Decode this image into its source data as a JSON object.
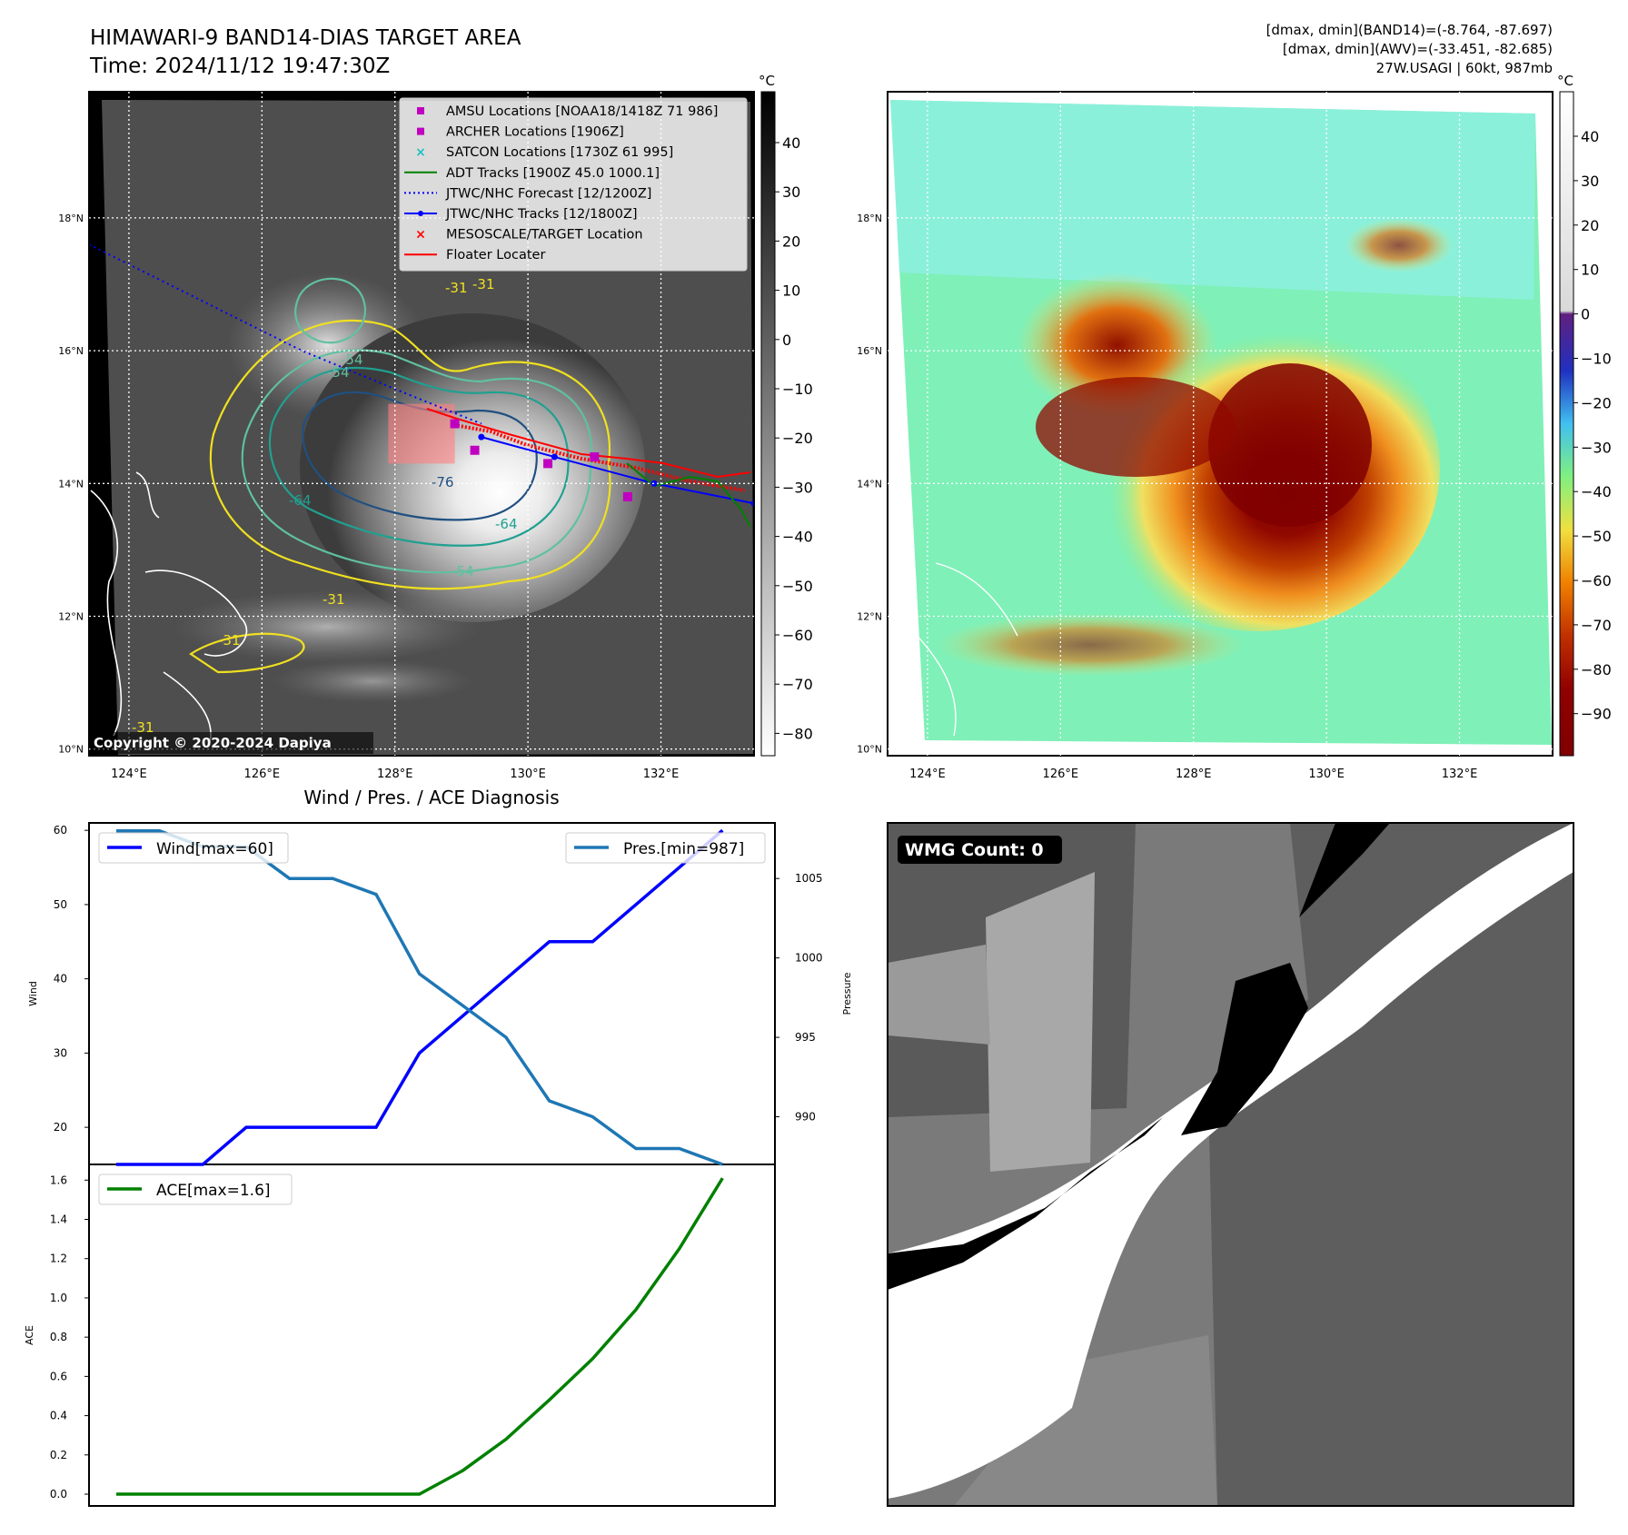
{
  "header": {
    "title_line1": "HIMAWARI-9 BAND14-DIAS TARGET AREA",
    "title_line2": "Time: 2024/11/12 19:47:30Z",
    "stats_line1": "[dmax, dmin](BAND14)=(-8.764, -87.697)",
    "stats_line2": "[dmax, dmin](AWV)=(-33.451, -82.685)",
    "stats_line3": "27W.USAGI | 60kt, 987mb"
  },
  "map": {
    "lat_labels": [
      "18°N",
      "16°N",
      "14°N",
      "12°N",
      "10°N"
    ],
    "lon_labels": [
      "124°E",
      "126°E",
      "128°E",
      "130°E",
      "132°E"
    ],
    "contour_labels": [
      "-31",
      "-54",
      "-64",
      "-76",
      "-64",
      "-54",
      "-31",
      "-31",
      "-31",
      "-31",
      "-54"
    ],
    "copyright": "Copyright © 2020-2024 Dapiya",
    "track_jtwc": [
      [
        129.3,
        14.7
      ],
      [
        130.4,
        14.4
      ],
      [
        131.9,
        14.0
      ],
      [
        133.4,
        13.7
      ]
    ],
    "track_forecast": [
      [
        123.4,
        17.6
      ],
      [
        125.0,
        16.8
      ],
      [
        126.6,
        16.0
      ],
      [
        128.3,
        15.3
      ],
      [
        129.3,
        14.9
      ]
    ],
    "amsu_points": [
      [
        128.9,
        14.9
      ],
      [
        129.2,
        14.5
      ],
      [
        130.3,
        14.3
      ],
      [
        131.0,
        14.4
      ],
      [
        131.5,
        13.8
      ]
    ],
    "floater_box": {
      "lon_min": 127.9,
      "lon_max": 128.9,
      "lat_min": 14.3,
      "lat_max": 15.2
    }
  },
  "legend": {
    "items": [
      {
        "label": "AMSU Locations [NOAA18/1418Z 71 986]",
        "color": "#c000c0",
        "marker": "square"
      },
      {
        "label": "ARCHER Locations [1906Z]",
        "color": "#c000c0",
        "marker": "square"
      },
      {
        "label": "SATCON Locations [1730Z 61 995]",
        "color": "#20c0c0",
        "marker": "x"
      },
      {
        "label": "ADT Tracks [1900Z 45.0 1000.1]",
        "color": "#008000",
        "marker": "line"
      },
      {
        "label": "JTWC/NHC Forecast [12/1200Z]",
        "color": "#0000ff",
        "marker": "dotted"
      },
      {
        "label": "JTWC/NHC Tracks [12/1800Z]",
        "color": "#0000ff",
        "marker": "dotline"
      },
      {
        "label": "MESOSCALE/TARGET Location",
        "color": "#ff0000",
        "marker": "x"
      },
      {
        "label": "Floater Locater",
        "color": "#ff0000",
        "marker": "line"
      }
    ]
  },
  "colorbar_gray": {
    "unit": "°C",
    "ticks": [
      "40",
      "30",
      "20",
      "10",
      "0",
      "−10",
      "−20",
      "−30",
      "−40",
      "−50",
      "−60",
      "−70",
      "−80"
    ]
  },
  "colorbar_color": {
    "unit": "°C",
    "ticks": [
      "40",
      "30",
      "20",
      "10",
      "0",
      "−10",
      "−20",
      "−30",
      "−40",
      "−50",
      "−60",
      "−70",
      "−80",
      "−90"
    ]
  },
  "wmg": {
    "label": "WMG Count: 0"
  },
  "chart_data": [
    {
      "type": "line",
      "title": "Wind / Pres. / ACE Diagnosis",
      "ylabel": "Wind",
      "y2label": "Pressure",
      "x": [
        0,
        1,
        2,
        3,
        4,
        5,
        6,
        7,
        8,
        9,
        10,
        11,
        12,
        13,
        14,
        15
      ],
      "ylim": [
        15,
        61
      ],
      "y2lim": [
        987,
        1008.5
      ],
      "yticks": [
        "60",
        "50",
        "40",
        "30",
        "20"
      ],
      "y2ticks": [
        "1005",
        "1000",
        "995",
        "990"
      ],
      "series": [
        {
          "name": "Wind[max=60]",
          "axis": "left",
          "color": "#0000ff",
          "values": [
            15,
            15,
            15,
            20,
            20,
            20,
            20,
            30,
            35,
            40,
            45,
            45,
            50,
            55,
            60,
            null
          ]
        },
        {
          "name": "Pres.[min=987]",
          "axis": "right",
          "color": "#1f77b4",
          "values": [
            1008,
            1008,
            1007,
            1007,
            1005,
            1005,
            1004,
            999,
            997,
            995,
            991,
            990,
            988,
            988,
            987,
            null
          ]
        }
      ]
    },
    {
      "type": "line",
      "title": "",
      "ylabel": "ACE",
      "x": [
        0,
        1,
        2,
        3,
        4,
        5,
        6,
        7,
        8,
        9,
        10,
        11,
        12,
        13,
        14,
        15
      ],
      "ylim": [
        -0.06,
        1.68
      ],
      "yticks": [
        "1.6",
        "1.4",
        "1.2",
        "1.0",
        "0.8",
        "0.6",
        "0.4",
        "0.2",
        "0.0"
      ],
      "series": [
        {
          "name": "ACE[max=1.6]",
          "color": "#008000",
          "values": [
            0,
            0,
            0,
            0,
            0,
            0,
            0,
            0,
            0.12,
            0.28,
            0.48,
            0.69,
            0.94,
            1.25,
            1.61,
            null
          ]
        }
      ]
    }
  ]
}
